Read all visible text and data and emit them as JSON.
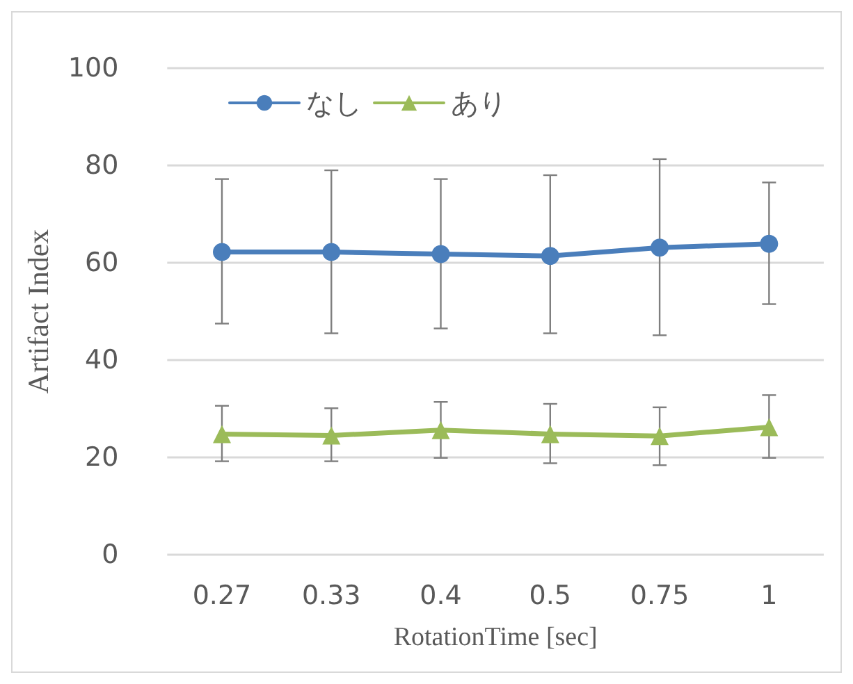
{
  "chart_data": {
    "type": "line",
    "xlabel": "RotationTime [sec]",
    "ylabel": "Artifact Index",
    "categories": [
      "0.27",
      "0.33",
      "0.4",
      "0.5",
      "0.75",
      "1"
    ],
    "series": [
      {
        "name": "なし",
        "color": "#4a7ebb",
        "marker": "circle",
        "values": [
          62.2,
          62.2,
          61.8,
          61.4,
          63.1,
          63.9
        ],
        "errors": [
          [
            47.5,
            77.2
          ],
          [
            45.5,
            79.0
          ],
          [
            46.5,
            77.2
          ],
          [
            45.5,
            78.0
          ],
          [
            45.1,
            81.3
          ],
          [
            51.5,
            76.5
          ]
        ]
      },
      {
        "name": "あり",
        "color": "#9bbb59",
        "marker": "triangle",
        "values": [
          24.8,
          24.5,
          25.6,
          24.8,
          24.4,
          26.2
        ],
        "errors": [
          [
            19.2,
            30.6
          ],
          [
            19.2,
            30.1
          ],
          [
            19.9,
            31.4
          ],
          [
            18.8,
            31.0
          ],
          [
            18.4,
            30.3
          ],
          [
            19.9,
            32.8
          ]
        ]
      }
    ],
    "ylim": [
      0,
      100
    ],
    "yticks": [
      0,
      20,
      40,
      60,
      80,
      100
    ],
    "grid": "y",
    "legend": "top"
  }
}
